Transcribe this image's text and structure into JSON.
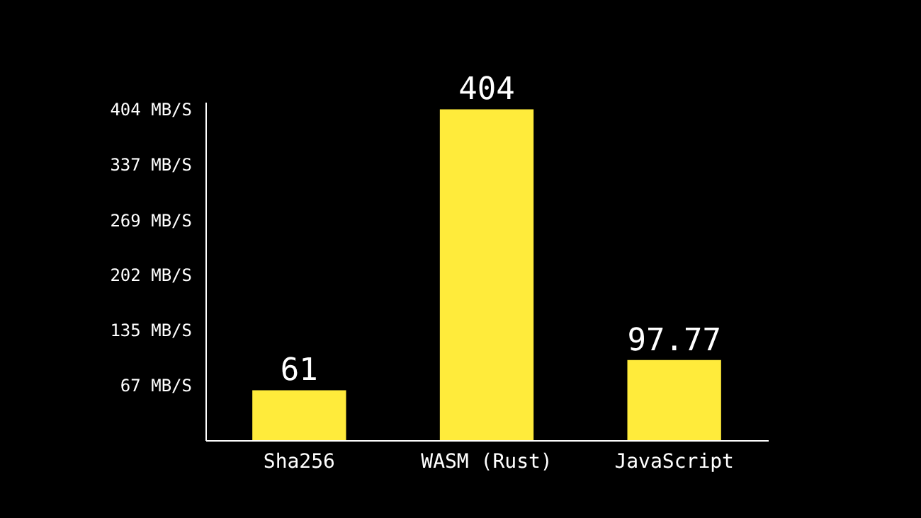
{
  "chart_data": {
    "type": "bar",
    "categories": [
      "Sha256",
      "WASM (Rust)",
      "JavaScript"
    ],
    "values": [
      61,
      404,
      97.77
    ],
    "color": "#ffeb3b",
    "ylim": [
      0,
      413
    ],
    "yticks": [
      {
        "value": 67,
        "label": "67 MB/S"
      },
      {
        "value": 135,
        "label": "135 MB/S"
      },
      {
        "value": 202,
        "label": "202 MB/S"
      },
      {
        "value": 269,
        "label": "269 MB/S"
      },
      {
        "value": 337,
        "label": "337 MB/S"
      },
      {
        "value": 404,
        "label": "404 MB/S"
      }
    ],
    "data_labels": true,
    "grid": false
  }
}
